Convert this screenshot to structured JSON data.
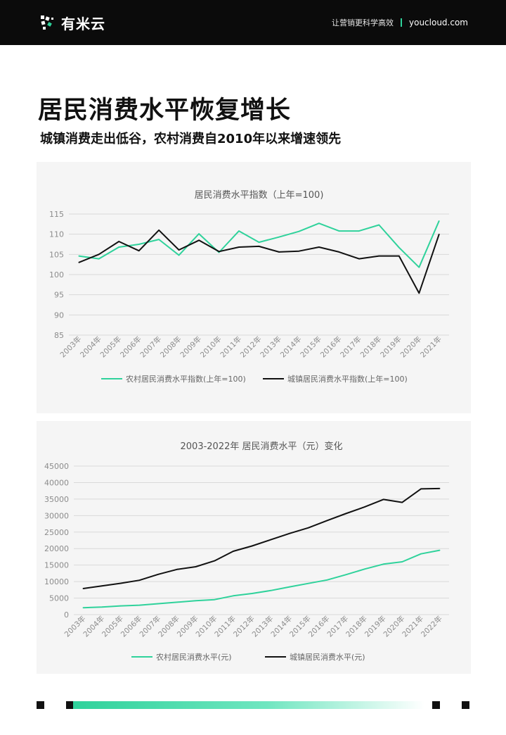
{
  "header": {
    "brand_name": "有米云",
    "tagline": "让营销更科学高效",
    "site": "youcloud.com"
  },
  "page_title": "居民消费水平恢复增长",
  "page_subtitle": "城镇消费走出低谷，农村消费自2010年以来增速领先",
  "colors": {
    "rural": "#2fd29b",
    "urban": "#111111",
    "grid": "#d9d9d9",
    "axis_text": "#8c8c8c"
  },
  "chart_data": [
    {
      "type": "line",
      "title": "居民消费水平指数（上年=100)",
      "categories": [
        "2003年",
        "2004年",
        "2005年",
        "2006年",
        "2007年",
        "2008年",
        "2009年",
        "2010年",
        "2011年",
        "2012年",
        "2013年",
        "2014年",
        "2015年",
        "2016年",
        "2017年",
        "2018年",
        "2019年",
        "2020年",
        "2021年"
      ],
      "ylim": [
        85,
        115
      ],
      "yticks": [
        85,
        90,
        95,
        100,
        105,
        110,
        115
      ],
      "grid": true,
      "legend_position": "bottom",
      "series": [
        {
          "name": "农村居民消费水平指数(上年=100)",
          "color": "#2fd29b",
          "values": [
            104.6,
            103.9,
            106.8,
            107.5,
            108.7,
            104.8,
            110.1,
            105.5,
            110.8,
            108.0,
            109.3,
            110.7,
            112.7,
            110.8,
            110.8,
            112.3,
            106.7,
            101.8,
            113.3
          ]
        },
        {
          "name": "城镇居民消费水平指数(上年=100)",
          "color": "#111111",
          "values": [
            103.0,
            105.0,
            108.2,
            105.9,
            111.0,
            106.1,
            108.5,
            105.7,
            106.8,
            107.0,
            105.6,
            105.8,
            106.8,
            105.6,
            103.9,
            104.6,
            104.6,
            95.4,
            110.0
          ]
        }
      ]
    },
    {
      "type": "line",
      "title": "2003-2022年 居民消费水平（元）变化",
      "categories": [
        "2003年",
        "2004年",
        "2005年",
        "2006年",
        "2007年",
        "2008年",
        "2009年",
        "2010年",
        "2011年",
        "2012年",
        "2013年",
        "2014年",
        "2015年",
        "2016年",
        "2017年",
        "2018年",
        "2019年",
        "2020年",
        "2021年",
        "2022年"
      ],
      "ylim": [
        0,
        45000
      ],
      "yticks": [
        0,
        5000,
        10000,
        15000,
        20000,
        25000,
        30000,
        35000,
        40000,
        45000
      ],
      "grid": true,
      "legend_position": "bottom",
      "series": [
        {
          "name": "农村居民消费水平(元)",
          "color": "#2fd29b",
          "values": [
            2100,
            2300,
            2650,
            2850,
            3300,
            3750,
            4200,
            4550,
            5700,
            6400,
            7300,
            8400,
            9450,
            10500,
            12100,
            13800,
            15300,
            16000,
            18400,
            19500
          ]
        },
        {
          "name": "城镇居民消费水平(元)",
          "color": "#111111",
          "values": [
            7900,
            8700,
            9500,
            10400,
            12200,
            13700,
            14500,
            16300,
            19200,
            20800,
            22700,
            24600,
            26300,
            28500,
            30600,
            32600,
            34900,
            34000,
            38100,
            38200
          ]
        }
      ]
    }
  ]
}
